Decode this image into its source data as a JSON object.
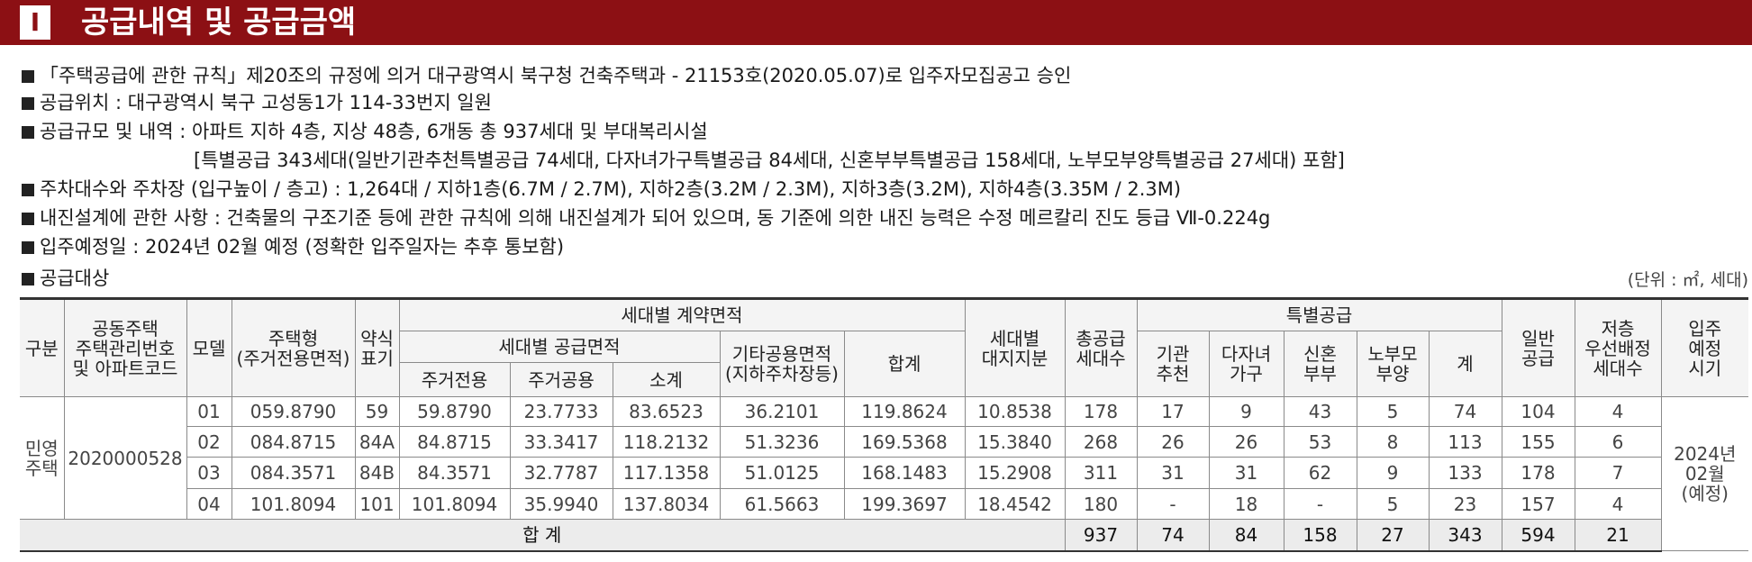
{
  "header": {
    "number": "Ⅰ",
    "title": "공급내역 및 공급금액"
  },
  "bullets": [
    {
      "text": "「주택공급에 관한 규칙」제20조의 규정에 의거 대구광역시 북구청 건축주택과 - 21153호(2020.05.07)로 입주자모집공고 승인"
    },
    {
      "text": "공급위치 : 대구광역시 북구 고성동1가 114-33번지 일원"
    },
    {
      "text": "공급규모 및 내역 : 아파트 지하 4층, 지상 48층, 6개동 총 937세대 및 부대복리시설",
      "detail": "[특별공급 343세대(일반기관추천특별공급 74세대, 다자녀가구특별공급 84세대, 신혼부부특별공급 158세대, 노부모부양특별공급 27세대) 포함]"
    },
    {
      "text": "주차대수와 주차장 (입구높이 / 층고) : 1,264대 / 지하1층(6.7M / 2.7M), 지하2층(3.2M / 2.3M), 지하3층(3.2M), 지하4층(3.35M / 2.3M)"
    },
    {
      "text": "내진설계에 관한 사항 : 건축물의 구조기준 등에 관한 규칙에 의해 내진설계가 되어 있으며, 동 기준에 의한 내진 능력은 수정 메르칼리 진도 등급 Ⅶ-0.224g"
    },
    {
      "text": "입주예정일 : 2024년 02월 예정 (정확한 입주일자는 추후 통보함)"
    },
    {
      "text": "공급대상"
    }
  ],
  "table": {
    "unit": "(단위 : ㎡, 세대)",
    "head": [
      "구분",
      "공동주택\n주택관리번호\n및 아파트코드",
      "모델",
      "주택형\n(주거전용면적)",
      "약식\n표기",
      "세대별 계약면적",
      "세대별\n대지지분",
      "총공급\n세대수",
      "특별공급",
      "일반\n공급",
      "저층\n우선배정\n세대수",
      "입주\n예정\n시기",
      "세대별 공급면적",
      "기타공용면적\n(지하주차장등)",
      "합계",
      "기관\n추천",
      "다자녀\n가구",
      "신혼\n부부",
      "노부모\n부양",
      "계",
      "주거전용",
      "주거공용",
      "소계"
    ],
    "category": "민영\n주택",
    "code": "2020000528",
    "move_in": "2024년\n02월\n(예정)",
    "rows": [
      [
        "01",
        "059.8790",
        "59",
        "59.8790",
        "23.7733",
        "83.6523",
        "36.2101",
        "119.8624",
        "10.8538",
        "178",
        "17",
        "9",
        "43",
        "5",
        "74",
        "104",
        "4"
      ],
      [
        "02",
        "084.8715",
        "84A",
        "84.8715",
        "33.3417",
        "118.2132",
        "51.3236",
        "169.5368",
        "15.3840",
        "268",
        "26",
        "26",
        "53",
        "8",
        "113",
        "155",
        "6"
      ],
      [
        "03",
        "084.3571",
        "84B",
        "84.3571",
        "32.7787",
        "117.1358",
        "51.0125",
        "168.1483",
        "15.2908",
        "311",
        "31",
        "31",
        "62",
        "9",
        "133",
        "178",
        "7"
      ],
      [
        "04",
        "101.8094",
        "101",
        "101.8094",
        "35.9940",
        "137.8034",
        "61.5663",
        "199.3697",
        "18.4542",
        "180",
        "-",
        "18",
        "-",
        "5",
        "23",
        "157",
        "4"
      ]
    ],
    "total_label": "합 계",
    "total": [
      "937",
      "74",
      "84",
      "158",
      "27",
      "343",
      "594",
      "21"
    ]
  }
}
